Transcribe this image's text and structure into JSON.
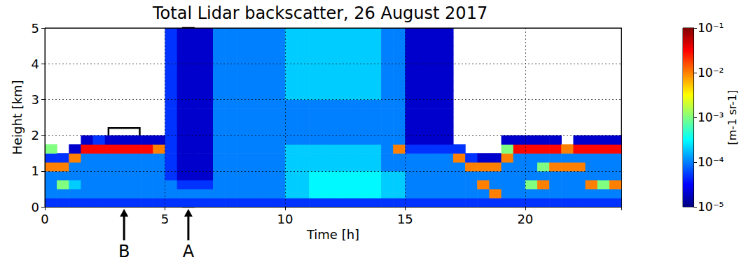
{
  "chart_data": {
    "type": "heatmap",
    "title": "Total Lidar backscatter, 26 August 2017",
    "x_label": "Time [h]",
    "y_label": "Height [km]",
    "xlim": [
      0,
      24
    ],
    "xticks": [
      0,
      5,
      10,
      15,
      20
    ],
    "ylim": [
      0,
      5
    ],
    "yticks": [
      0,
      1,
      2,
      3,
      4,
      5
    ],
    "grid": true,
    "colorbar": {
      "label": "[m-1 sr-1]",
      "log": true,
      "range": [
        1e-05,
        0.1
      ],
      "ticks": [
        {
          "value": 1e-05,
          "label": "10⁻⁵"
        },
        {
          "value": 0.0001,
          "label": "10⁻⁴"
        },
        {
          "value": 0.001,
          "label": "10⁻³"
        },
        {
          "value": 0.01,
          "label": "10⁻²"
        },
        {
          "value": 0.1,
          "label": "10⁻¹"
        }
      ]
    },
    "annotations": [
      {
        "label": "A",
        "x": [
          5.75,
          6.2
        ],
        "y": [
          0,
          5
        ]
      },
      {
        "label": "B",
        "x": [
          2.65,
          3.95
        ],
        "y": [
          1.15,
          2.2
        ]
      }
    ],
    "cells": {
      "x": [
        0.25,
        0.75,
        1.25,
        1.75,
        2.25,
        2.75,
        3.25,
        3.75,
        4.25,
        4.75,
        5.25,
        5.75,
        6.25,
        6.75,
        7.25,
        7.75,
        8.25,
        8.75,
        9.25,
        9.75,
        10.25,
        10.75,
        11.25,
        11.75,
        12.25,
        12.75,
        13.25,
        13.75,
        14.25,
        14.75,
        15.25,
        15.75,
        16.25,
        16.75,
        17.25,
        17.75,
        18.25,
        18.75,
        19.25,
        19.75,
        20.25,
        20.75,
        21.25,
        21.75,
        22.25,
        22.75,
        23.25,
        23.75
      ],
      "y": [
        0.125,
        0.375,
        0.625,
        0.875,
        1.125,
        1.375,
        1.625,
        1.875,
        2.125,
        2.375,
        2.625,
        2.875,
        3.125,
        3.375,
        3.625,
        3.875,
        4.125,
        4.375,
        4.625,
        4.875
      ],
      "values": [
        [
          5e-05,
          0.0001,
          0.0001,
          0.0001,
          0.01,
          5e-05,
          0.001,
          null,
          null,
          null,
          null,
          null,
          null,
          null,
          null,
          null,
          null,
          null,
          null,
          null
        ],
        [
          5e-05,
          0.0001,
          0.001,
          0.0001,
          0.01,
          5e-05,
          null,
          null,
          null,
          null,
          null,
          null,
          null,
          null,
          null,
          null,
          null,
          null,
          null,
          null
        ],
        [
          5e-05,
          0.0001,
          0.0002,
          0.0001,
          0.0001,
          0.01,
          2e-05,
          null,
          null,
          null,
          null,
          null,
          null,
          null,
          null,
          null,
          null,
          null,
          null,
          null
        ],
        [
          5e-05,
          0.0001,
          0.0001,
          0.0001,
          0.0001,
          0.0001,
          0.03,
          2e-05,
          null,
          null,
          null,
          null,
          null,
          null,
          null,
          null,
          null,
          null,
          null,
          null
        ],
        [
          5e-05,
          0.0001,
          0.0001,
          0.0001,
          0.0001,
          0.0001,
          0.03,
          5e-05,
          null,
          null,
          null,
          null,
          null,
          null,
          null,
          null,
          null,
          null,
          null,
          null
        ],
        [
          5e-05,
          0.0001,
          0.0001,
          0.0001,
          0.0001,
          0.0001,
          0.03,
          2e-05,
          null,
          null,
          null,
          null,
          null,
          null,
          null,
          null,
          null,
          null,
          null,
          null
        ],
        [
          5e-05,
          0.0001,
          0.0001,
          0.0001,
          0.0001,
          0.0001,
          0.03,
          2e-05,
          null,
          null,
          null,
          null,
          null,
          null,
          null,
          null,
          null,
          null,
          null,
          null
        ],
        [
          5e-05,
          0.0001,
          0.0001,
          0.0001,
          0.0001,
          0.0001,
          0.03,
          2e-05,
          null,
          null,
          null,
          null,
          null,
          null,
          null,
          null,
          null,
          null,
          null,
          null
        ],
        [
          5e-05,
          0.0001,
          0.0001,
          0.0001,
          0.0001,
          0.0001,
          0.03,
          2e-05,
          null,
          null,
          null,
          null,
          null,
          null,
          null,
          null,
          null,
          null,
          null,
          null
        ],
        [
          5e-05,
          0.0001,
          0.0001,
          0.0001,
          0.0001,
          0.0001,
          0.01,
          2e-05,
          null,
          null,
          null,
          null,
          null,
          null,
          null,
          null,
          null,
          null,
          null,
          null
        ],
        [
          5e-05,
          0.0001,
          0.0001,
          5e-05,
          5e-05,
          5e-05,
          5e-05,
          5e-05,
          5e-05,
          5e-05,
          5e-05,
          5e-05,
          5e-05,
          5e-05,
          5e-05,
          5e-05,
          5e-05,
          5e-05,
          5e-05,
          5e-05
        ],
        [
          5e-05,
          0.0001,
          5e-05,
          2e-05,
          2e-05,
          2e-05,
          2e-05,
          2e-05,
          2e-05,
          2e-05,
          2e-05,
          2e-05,
          2e-05,
          2e-05,
          2e-05,
          2e-05,
          2e-05,
          2e-05,
          2e-05,
          2e-05
        ],
        [
          5e-05,
          0.0001,
          5e-05,
          2e-05,
          2e-05,
          2e-05,
          2e-05,
          2e-05,
          2e-05,
          2e-05,
          2e-05,
          2e-05,
          2e-05,
          2e-05,
          2e-05,
          2e-05,
          2e-05,
          2e-05,
          2e-05,
          2e-05
        ],
        [
          5e-05,
          0.0001,
          5e-05,
          2e-05,
          2e-05,
          2e-05,
          2e-05,
          2e-05,
          2e-05,
          2e-05,
          2e-05,
          2e-05,
          2e-05,
          2e-05,
          2e-05,
          2e-05,
          2e-05,
          2e-05,
          2e-05,
          2e-05
        ],
        [
          5e-05,
          0.0001,
          0.0001,
          0.0001,
          0.0001,
          0.0001,
          0.0001,
          0.0001,
          0.0001,
          0.0001,
          0.0001,
          0.0001,
          0.0001,
          0.0001,
          0.0001,
          0.0001,
          0.0001,
          0.0001,
          0.0001,
          0.0001
        ],
        [
          5e-05,
          0.0001,
          0.0001,
          0.0001,
          0.0001,
          0.0001,
          0.0001,
          0.0001,
          0.0001,
          0.0001,
          0.0001,
          0.0001,
          0.0001,
          0.0001,
          0.0001,
          0.0001,
          0.0001,
          0.0001,
          0.0001,
          0.0001
        ],
        [
          5e-05,
          0.0001,
          0.0001,
          0.0001,
          0.0001,
          0.0001,
          0.0001,
          0.0001,
          0.0001,
          0.0001,
          0.0001,
          0.0001,
          0.0001,
          0.0001,
          0.0001,
          0.0001,
          0.0001,
          0.0001,
          0.0001,
          0.0001
        ],
        [
          5e-05,
          0.0001,
          0.0001,
          0.0001,
          0.0001,
          0.0001,
          0.0001,
          0.0001,
          0.0001,
          0.0001,
          0.0001,
          0.0001,
          0.0001,
          0.0001,
          0.0001,
          0.0001,
          0.0001,
          0.0001,
          0.0001,
          0.0001
        ],
        [
          5e-05,
          0.0001,
          0.0001,
          0.0001,
          0.0001,
          0.0001,
          0.0001,
          0.0001,
          0.0001,
          0.0001,
          0.0001,
          0.0001,
          0.0001,
          0.0001,
          0.0001,
          0.0001,
          0.0001,
          0.0001,
          0.0001,
          0.0001
        ],
        [
          5e-05,
          0.0001,
          0.0001,
          0.0001,
          0.0001,
          0.0001,
          0.0001,
          0.0001,
          0.0001,
          0.0001,
          0.0001,
          0.0001,
          0.0001,
          0.0001,
          0.0001,
          0.0001,
          0.0001,
          0.0001,
          0.0001,
          0.0001
        ],
        [
          5e-05,
          0.0002,
          0.0002,
          0.0002,
          0.0002,
          0.0002,
          0.0002,
          0.0001,
          0.0001,
          0.0001,
          0.0001,
          0.0001,
          0.0002,
          0.0002,
          0.0002,
          0.0002,
          0.0002,
          0.0002,
          0.0002,
          0.0002
        ],
        [
          5e-05,
          0.0002,
          0.0002,
          0.0002,
          0.0002,
          0.0002,
          0.0002,
          0.0001,
          0.0001,
          0.0001,
          0.0001,
          0.0001,
          0.0002,
          0.0002,
          0.0002,
          0.0002,
          0.0002,
          0.0002,
          0.0002,
          0.0002
        ],
        [
          5e-05,
          0.0003,
          0.0003,
          0.0003,
          0.0002,
          0.0002,
          0.0002,
          0.0001,
          0.0001,
          0.0001,
          0.0001,
          0.0001,
          0.0002,
          0.0002,
          0.0002,
          0.0002,
          0.0002,
          0.0002,
          0.0002,
          0.0002
        ],
        [
          5e-05,
          0.0003,
          0.0003,
          0.0003,
          0.0002,
          0.0002,
          0.0002,
          0.0001,
          0.0001,
          0.0001,
          0.0001,
          0.0001,
          0.0002,
          0.0002,
          0.0002,
          0.0002,
          0.0002,
          0.0002,
          0.0002,
          0.0002
        ],
        [
          5e-05,
          0.0003,
          0.0003,
          0.0003,
          0.0002,
          0.0002,
          0.0002,
          0.0001,
          0.0001,
          0.0001,
          0.0001,
          0.0001,
          0.0002,
          0.0002,
          0.0002,
          0.0002,
          0.0002,
          0.0002,
          0.0002,
          0.0002
        ],
        [
          5e-05,
          0.0003,
          0.0003,
          0.0003,
          0.0002,
          0.0002,
          0.0002,
          0.0001,
          0.0001,
          0.0001,
          0.0001,
          0.0001,
          0.0002,
          0.0002,
          0.0002,
          0.0002,
          0.0002,
          0.0002,
          0.0002,
          0.0002
        ],
        [
          5e-05,
          0.0003,
          0.0003,
          0.0003,
          0.0002,
          0.0002,
          0.0002,
          0.0001,
          0.0001,
          0.0001,
          0.0001,
          0.0001,
          0.0002,
          0.0002,
          0.0002,
          0.0002,
          0.0002,
          0.0002,
          0.0002,
          0.0002
        ],
        [
          5e-05,
          0.0003,
          0.0003,
          0.0003,
          0.0002,
          0.0002,
          0.0002,
          0.0001,
          0.0001,
          0.0001,
          0.0001,
          0.0001,
          0.0002,
          0.0002,
          0.0002,
          0.0002,
          0.0002,
          0.0002,
          0.0002,
          0.0002
        ],
        [
          5e-05,
          0.0002,
          0.0002,
          0.0002,
          0.0001,
          0.0001,
          0.0001,
          0.0001,
          0.0001,
          0.0001,
          0.0001,
          0.0001,
          0.0001,
          0.0001,
          0.0001,
          0.0001,
          0.0001,
          0.0001,
          0.0001,
          0.0001
        ],
        [
          5e-05,
          0.0002,
          0.0002,
          0.0002,
          0.0001,
          0.0001,
          0.01,
          0.0001,
          0.0001,
          0.0001,
          0.0001,
          0.0001,
          0.0001,
          0.0001,
          0.0001,
          0.0001,
          0.0001,
          0.0001,
          0.0001,
          0.0001
        ],
        [
          5e-05,
          0.0001,
          0.0001,
          0.0001,
          0.0001,
          0.0001,
          5e-05,
          2e-05,
          2e-05,
          2e-05,
          2e-05,
          2e-05,
          2e-05,
          2e-05,
          2e-05,
          2e-05,
          2e-05,
          2e-05,
          2e-05,
          2e-05
        ],
        [
          5e-05,
          0.0001,
          0.0001,
          0.0001,
          0.0001,
          0.0001,
          5e-05,
          2e-05,
          2e-05,
          2e-05,
          2e-05,
          2e-05,
          2e-05,
          2e-05,
          2e-05,
          2e-05,
          2e-05,
          2e-05,
          2e-05,
          2e-05
        ],
        [
          5e-05,
          0.0001,
          0.0001,
          0.0001,
          0.0001,
          0.0001,
          5e-05,
          2e-05,
          2e-05,
          2e-05,
          2e-05,
          2e-05,
          2e-05,
          2e-05,
          2e-05,
          2e-05,
          2e-05,
          2e-05,
          2e-05,
          2e-05
        ],
        [
          5e-05,
          0.0001,
          0.0001,
          0.0001,
          0.0001,
          0.0001,
          5e-05,
          2e-05,
          2e-05,
          2e-05,
          2e-05,
          2e-05,
          2e-05,
          2e-05,
          2e-05,
          2e-05,
          2e-05,
          2e-05,
          2e-05,
          2e-05
        ],
        [
          5e-05,
          0.0001,
          0.0001,
          0.0001,
          0.0001,
          0.01,
          5e-05,
          null,
          null,
          null,
          null,
          null,
          null,
          null,
          null,
          null,
          null,
          null,
          null,
          null
        ],
        [
          5e-05,
          0.0001,
          0.0001,
          0.0001,
          0.01,
          5e-05,
          null,
          null,
          null,
          null,
          null,
          null,
          null,
          null,
          null,
          null,
          null,
          null,
          null,
          null
        ],
        [
          5e-05,
          0.0001,
          0.01,
          0.0001,
          0.01,
          2e-05,
          null,
          null,
          null,
          null,
          null,
          null,
          null,
          null,
          null,
          null,
          null,
          null,
          null,
          null
        ],
        [
          5e-05,
          0.01,
          0.0001,
          0.0001,
          0.01,
          2e-05,
          null,
          null,
          null,
          null,
          null,
          null,
          null,
          null,
          null,
          null,
          null,
          null,
          null,
          null
        ],
        [
          5e-05,
          0.0001,
          0.0001,
          0.0001,
          0.0001,
          0.01,
          0.001,
          2e-05,
          null,
          null,
          null,
          null,
          null,
          null,
          null,
          null,
          null,
          null,
          null,
          null
        ],
        [
          5e-05,
          0.0001,
          0.0001,
          0.0001,
          0.0001,
          0.0001,
          0.03,
          2e-05,
          null,
          null,
          null,
          null,
          null,
          null,
          null,
          null,
          null,
          null,
          null,
          null
        ],
        [
          5e-05,
          0.0001,
          0.001,
          0.0001,
          0.0001,
          0.0001,
          0.03,
          2e-05,
          null,
          null,
          null,
          null,
          null,
          null,
          null,
          null,
          null,
          null,
          null,
          null
        ],
        [
          5e-05,
          0.0001,
          0.01,
          0.0001,
          0.001,
          0.0001,
          0.03,
          2e-05,
          null,
          null,
          null,
          null,
          null,
          null,
          null,
          null,
          null,
          null,
          null,
          null
        ],
        [
          5e-05,
          0.0001,
          0.0001,
          0.0001,
          0.01,
          0.0001,
          0.03,
          2e-05,
          null,
          null,
          null,
          null,
          null,
          null,
          null,
          null,
          null,
          null,
          null,
          null
        ],
        [
          5e-05,
          0.0001,
          0.0001,
          0.0001,
          0.01,
          0.0001,
          0.01,
          null,
          null,
          null,
          null,
          null,
          null,
          null,
          null,
          null,
          null,
          null,
          null,
          null
        ],
        [
          5e-05,
          0.0001,
          0.0001,
          0.0001,
          0.01,
          0.0001,
          0.03,
          2e-05,
          null,
          null,
          null,
          null,
          null,
          null,
          null,
          null,
          null,
          null,
          null,
          null
        ],
        [
          5e-05,
          0.0001,
          0.01,
          0.0001,
          0.0001,
          0.0001,
          0.03,
          2e-05,
          null,
          null,
          null,
          null,
          null,
          null,
          null,
          null,
          null,
          null,
          null,
          null
        ],
        [
          5e-05,
          0.0001,
          0.001,
          0.0001,
          0.0001,
          0.0001,
          0.03,
          2e-05,
          null,
          null,
          null,
          null,
          null,
          null,
          null,
          null,
          null,
          null,
          null,
          null
        ],
        [
          5e-05,
          0.0001,
          0.01,
          0.0001,
          0.0001,
          0.0001,
          0.03,
          2e-05,
          null,
          null,
          null,
          null,
          null,
          null,
          null,
          null,
          null,
          null,
          null,
          null
        ]
      ]
    }
  }
}
